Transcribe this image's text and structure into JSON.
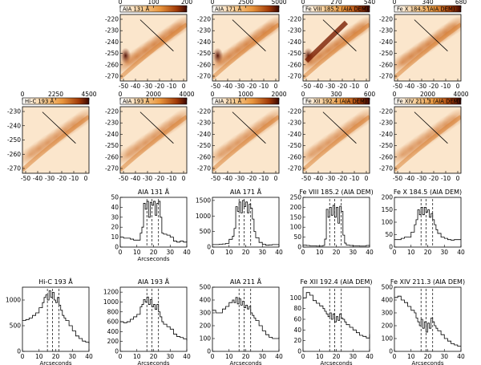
{
  "chart_data": {
    "type": "figure",
    "images": [
      {
        "id": "aia131",
        "label": "AIA 131 Å",
        "colorbar_ticks": [
          "0",
          "100",
          "200"
        ],
        "y_ticks": [
          "-220",
          "-230",
          "-240",
          "-250",
          "-260",
          "-270"
        ],
        "x_ticks": [
          "-50",
          "-40",
          "-30",
          "-20",
          "-10",
          "0"
        ]
      },
      {
        "id": "aia171",
        "label": "AIA 171 Å",
        "colorbar_ticks": [
          "0",
          "2500",
          "5000"
        ],
        "y_ticks": [
          "-220",
          "-230",
          "-240",
          "-250",
          "-260",
          "-270"
        ],
        "x_ticks": [
          "-50",
          "-40",
          "-30",
          "-20",
          "-10",
          "0"
        ]
      },
      {
        "id": "fe8",
        "label": "Fe VIII 185.2 (AIA DEM)",
        "colorbar_ticks": [
          "0",
          "270",
          "540"
        ],
        "y_ticks": [
          "-220",
          "-230",
          "-240",
          "-250",
          "-260",
          "-270"
        ],
        "x_ticks": [
          "-50",
          "-40",
          "-30",
          "-20",
          "-10",
          "0"
        ]
      },
      {
        "id": "fe10",
        "label": "Fe X 184.5 (AIA DEM)",
        "colorbar_ticks": [
          "0",
          "340",
          "680"
        ],
        "y_ticks": [
          "-220",
          "-230",
          "-240",
          "-250",
          "-260",
          "-270"
        ],
        "x_ticks": [
          "-50",
          "-40",
          "-30",
          "-20",
          "-10",
          "0"
        ]
      },
      {
        "id": "hic",
        "label": "Hi-C 193 Å",
        "colorbar_ticks": [
          "0",
          "2250",
          "4500"
        ],
        "y_ticks": [
          "-230",
          "-240",
          "-250",
          "-260",
          "-270"
        ],
        "x_ticks": [
          "-50",
          "-40",
          "-30",
          "-20",
          "-10",
          "0"
        ]
      },
      {
        "id": "aia193",
        "label": "AIA 193 Å",
        "colorbar_ticks": [
          "0",
          "2000",
          "4000"
        ],
        "y_ticks": [
          "-220",
          "-230",
          "-240",
          "-250",
          "-260",
          "-270"
        ],
        "x_ticks": [
          "-50",
          "-40",
          "-30",
          "-20",
          "-10",
          "0"
        ]
      },
      {
        "id": "aia211",
        "label": "AIA 211 Å",
        "colorbar_ticks": [
          "0",
          "1000",
          "2000"
        ],
        "y_ticks": [
          "-220",
          "-230",
          "-240",
          "-250",
          "-260",
          "-270"
        ],
        "x_ticks": [
          "-50",
          "-40",
          "-30",
          "-20",
          "-10",
          "0"
        ]
      },
      {
        "id": "fe12",
        "label": "Fe XII 192.4 (AIA DEM)",
        "colorbar_ticks": [
          "0",
          "300",
          "600"
        ],
        "y_ticks": [
          "-220",
          "-230",
          "-240",
          "-250",
          "-260",
          "-270"
        ],
        "x_ticks": [
          "-50",
          "-40",
          "-30",
          "-20",
          "-10",
          "0"
        ]
      },
      {
        "id": "fe14",
        "label": "Fe XIV 211.3 (AIA DEM)",
        "colorbar_ticks": [
          "0",
          "2000",
          "4000"
        ],
        "y_ticks": [
          "-220",
          "-230",
          "-240",
          "-250",
          "-260",
          "-270"
        ],
        "x_ticks": [
          "-50",
          "-40",
          "-30",
          "-20",
          "-10",
          "0"
        ]
      }
    ],
    "plots": [
      {
        "id": "p131",
        "type": "line",
        "title": "AIA 131 Å",
        "xlabel": "Arcseconds",
        "xlim": [
          0,
          40
        ],
        "ylim": [
          0,
          50
        ],
        "x_ticks": [
          0,
          10,
          20,
          30,
          40
        ],
        "y_ticks": [
          0,
          10,
          20,
          30,
          40,
          50
        ],
        "vlines": [
          16,
          19,
          23
        ],
        "x": [
          0,
          2,
          4,
          6,
          8,
          10,
          12,
          13,
          14,
          15,
          16,
          17,
          18,
          19,
          20,
          21,
          22,
          23,
          24,
          25,
          26,
          28,
          30,
          32,
          34,
          36,
          38,
          40
        ],
        "y": [
          10,
          9,
          9,
          8,
          7,
          7,
          14,
          20,
          44,
          38,
          46,
          30,
          45,
          42,
          46,
          32,
          44,
          46,
          30,
          14,
          13,
          12,
          10,
          6,
          5,
          6,
          5,
          6
        ]
      },
      {
        "id": "p171",
        "type": "line",
        "title": "AIA 171 Å",
        "xlabel": "",
        "xlim": [
          0,
          40
        ],
        "ylim": [
          0,
          1600
        ],
        "x_ticks": [
          0,
          10,
          20,
          30,
          40
        ],
        "y_ticks": [
          0,
          500,
          1000,
          1500
        ],
        "vlines": [
          16,
          19,
          23
        ],
        "x": [
          0,
          2,
          4,
          6,
          8,
          10,
          12,
          13,
          14,
          15,
          16,
          17,
          18,
          19,
          20,
          21,
          22,
          23,
          24,
          25,
          26,
          28,
          30,
          32,
          34,
          36,
          38,
          40
        ],
        "y": [
          80,
          80,
          90,
          100,
          120,
          250,
          350,
          600,
          1300,
          1150,
          1450,
          1100,
          1500,
          1300,
          1450,
          1100,
          1380,
          1250,
          900,
          500,
          300,
          150,
          90,
          60,
          70,
          80,
          80,
          80
        ]
      },
      {
        "id": "pfe8",
        "type": "line",
        "title": "Fe VIII 185.2 (AIA DEM)",
        "xlabel": "",
        "xlim": [
          0,
          40
        ],
        "ylim": [
          0,
          250
        ],
        "x_ticks": [
          0,
          10,
          20,
          30,
          40
        ],
        "y_ticks": [
          0,
          50,
          100,
          150,
          200,
          250
        ],
        "vlines": [
          16,
          19,
          23
        ],
        "x": [
          0,
          2,
          4,
          6,
          8,
          10,
          12,
          13,
          14,
          15,
          16,
          17,
          18,
          19,
          20,
          21,
          22,
          23,
          24,
          25,
          26,
          28,
          30,
          32,
          34,
          36,
          38,
          40
        ],
        "y": [
          10,
          8,
          6,
          6,
          5,
          5,
          8,
          40,
          190,
          150,
          200,
          160,
          210,
          150,
          200,
          120,
          205,
          180,
          60,
          20,
          10,
          8,
          6,
          6,
          5,
          5,
          8,
          6
        ]
      },
      {
        "id": "pfe10",
        "type": "line",
        "title": "Fe X 184.5 (AIA DEM)",
        "xlabel": "",
        "xlim": [
          0,
          40
        ],
        "ylim": [
          0,
          200
        ],
        "x_ticks": [
          0,
          10,
          20,
          30,
          40
        ],
        "y_ticks": [
          0,
          50,
          100,
          150,
          200
        ],
        "vlines": [
          16,
          19,
          23
        ],
        "x": [
          0,
          2,
          4,
          6,
          8,
          10,
          12,
          13,
          14,
          15,
          16,
          17,
          18,
          19,
          20,
          21,
          22,
          23,
          24,
          25,
          26,
          28,
          30,
          32,
          34,
          36,
          38,
          40
        ],
        "y": [
          30,
          30,
          35,
          40,
          40,
          60,
          90,
          110,
          150,
          130,
          160,
          130,
          160,
          140,
          150,
          120,
          135,
          110,
          90,
          70,
          55,
          40,
          35,
          30,
          28,
          30,
          30,
          30
        ]
      },
      {
        "id": "phic",
        "type": "line",
        "title": "Hi-C 193 Å",
        "xlabel": "Arcseconds",
        "xlim": [
          0,
          40
        ],
        "ylim": [
          0,
          1250
        ],
        "x_ticks": [
          0,
          10,
          20,
          30,
          40
        ],
        "y_ticks": [
          0,
          500,
          1000
        ],
        "vlines": [
          15,
          18,
          22
        ],
        "x": [
          0,
          2,
          4,
          6,
          8,
          10,
          12,
          13,
          14,
          15,
          16,
          17,
          18,
          19,
          20,
          21,
          22,
          23,
          24,
          25,
          26,
          28,
          30,
          32,
          34,
          36,
          38,
          40
        ],
        "y": [
          600,
          620,
          650,
          700,
          750,
          850,
          950,
          1050,
          1100,
          1000,
          1180,
          1050,
          1150,
          1000,
          950,
          1050,
          900,
          800,
          700,
          650,
          600,
          500,
          400,
          300,
          250,
          200,
          180,
          150
        ]
      },
      {
        "id": "p193",
        "type": "line",
        "title": "AIA 193 Å",
        "xlabel": "Arcseconds",
        "xlim": [
          0,
          40
        ],
        "ylim": [
          0,
          1300
        ],
        "x_ticks": [
          0,
          10,
          20,
          30,
          40
        ],
        "y_ticks": [
          0,
          200,
          400,
          600,
          800,
          1000,
          1200
        ],
        "vlines": [
          16,
          19,
          23
        ],
        "x": [
          0,
          2,
          4,
          6,
          8,
          10,
          12,
          13,
          14,
          15,
          16,
          17,
          18,
          19,
          20,
          21,
          22,
          23,
          24,
          25,
          26,
          28,
          30,
          32,
          34,
          36,
          38,
          40
        ],
        "y": [
          600,
          580,
          600,
          650,
          700,
          750,
          900,
          950,
          1050,
          1000,
          1100,
          950,
          1050,
          900,
          950,
          850,
          950,
          800,
          700,
          600,
          550,
          500,
          450,
          350,
          300,
          280,
          250,
          220
        ]
      },
      {
        "id": "p211",
        "type": "line",
        "title": "AIA 211 Å",
        "xlabel": "Arcseconds",
        "xlim": [
          0,
          40
        ],
        "ylim": [
          0,
          500
        ],
        "x_ticks": [
          0,
          10,
          20,
          30,
          40
        ],
        "y_ticks": [
          0,
          100,
          200,
          300,
          400,
          500
        ],
        "vlines": [
          16,
          19,
          23
        ],
        "x": [
          0,
          2,
          4,
          6,
          8,
          10,
          12,
          13,
          14,
          15,
          16,
          17,
          18,
          19,
          20,
          21,
          22,
          23,
          24,
          25,
          26,
          28,
          30,
          32,
          34,
          36,
          38,
          40
        ],
        "y": [
          320,
          300,
          300,
          330,
          350,
          380,
          400,
          380,
          420,
          370,
          410,
          360,
          390,
          340,
          360,
          330,
          350,
          300,
          280,
          260,
          240,
          200,
          160,
          130,
          110,
          100,
          100,
          110
        ]
      },
      {
        "id": "pfe12",
        "type": "line",
        "title": "Fe XII 192.4 (AIA DEM)",
        "xlabel": "Arcseconds",
        "xlim": [
          0,
          40
        ],
        "ylim": [
          0,
          120
        ],
        "x_ticks": [
          0,
          10,
          20,
          30,
          40
        ],
        "y_ticks": [
          0,
          20,
          40,
          60,
          80,
          100
        ],
        "vlines": [
          16,
          19,
          23
        ],
        "x": [
          0,
          2,
          4,
          6,
          8,
          10,
          12,
          13,
          14,
          15,
          16,
          17,
          18,
          19,
          20,
          21,
          22,
          23,
          24,
          25,
          26,
          28,
          30,
          32,
          34,
          36,
          38,
          40
        ],
        "y": [
          100,
          110,
          105,
          95,
          90,
          85,
          80,
          75,
          70,
          65,
          72,
          60,
          70,
          55,
          65,
          58,
          70,
          62,
          60,
          55,
          50,
          45,
          40,
          35,
          30,
          28,
          25,
          32
        ]
      },
      {
        "id": "pfe14",
        "type": "line",
        "title": "Fe XIV 211.3 (AIA DEM)",
        "xlabel": "Arcseconds",
        "xlim": [
          0,
          40
        ],
        "ylim": [
          0,
          500
        ],
        "x_ticks": [
          0,
          10,
          20,
          30,
          40
        ],
        "y_ticks": [
          0,
          100,
          200,
          300,
          400,
          500
        ],
        "vlines": [
          16,
          19,
          23
        ],
        "x": [
          0,
          2,
          4,
          6,
          8,
          10,
          12,
          13,
          14,
          15,
          16,
          17,
          18,
          19,
          20,
          21,
          22,
          23,
          24,
          25,
          26,
          28,
          30,
          32,
          34,
          36,
          38,
          40
        ],
        "y": [
          420,
          430,
          400,
          380,
          350,
          320,
          300,
          260,
          230,
          200,
          250,
          180,
          230,
          150,
          220,
          180,
          260,
          230,
          200,
          180,
          160,
          130,
          100,
          80,
          60,
          50,
          40,
          40
        ]
      }
    ]
  },
  "colors": {
    "cmap_low": "#fff8ee",
    "cmap_mid": "#e8953d",
    "cmap_high": "#3a0700",
    "line": "#000000"
  }
}
